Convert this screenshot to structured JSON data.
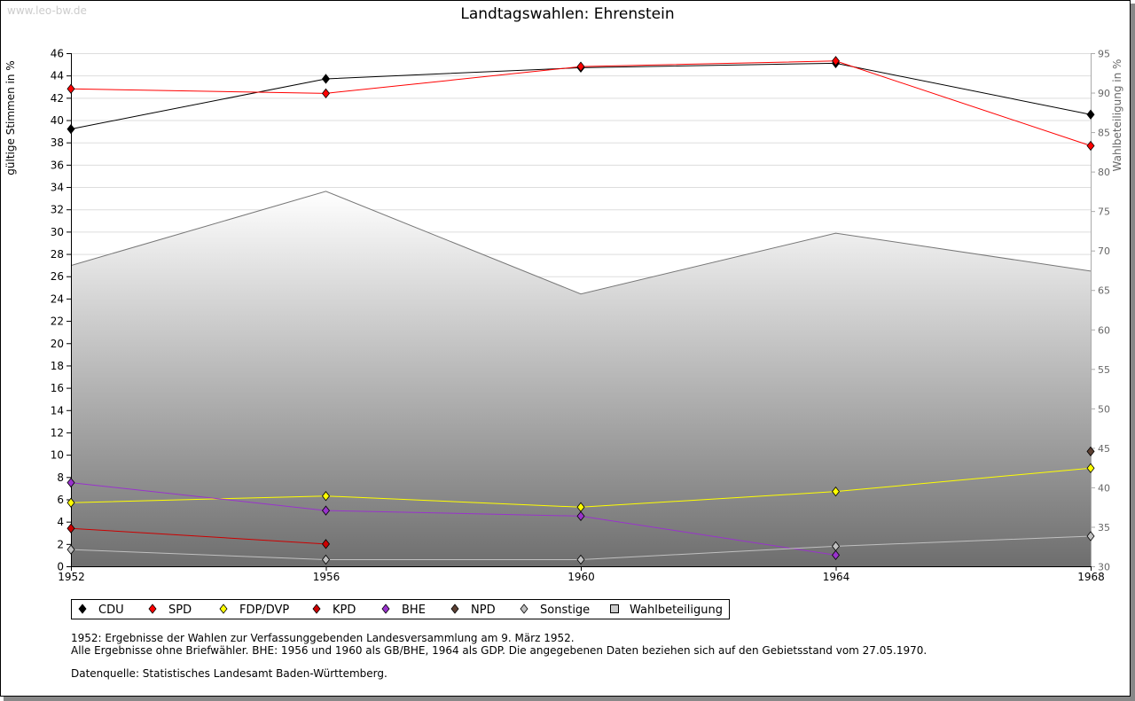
{
  "watermark": "www.leo-bw.de",
  "notes": [
    "1952: Ergebnisse der Wahlen zur Verfassunggebenden Landesversammlung am 9. März 1952.",
    "Alle Ergebnisse ohne Briefwähler. BHE: 1956 und 1960 als GB/BHE, 1964 als GDP. Die angegebenen Daten beziehen sich auf den Gebietsstand vom 27.05.1970.",
    "Datenquelle: Statistisches Landesamt Baden-Württemberg."
  ],
  "chart_data": {
    "type": "line",
    "title": "Landtagswahlen: Ehrenstein",
    "ylabel": "gültige Stimmen in %",
    "y2label": "Wahlbeteiligung in %",
    "x": [
      1952,
      1956,
      1960,
      1964,
      1968
    ],
    "ylim": [
      0,
      46
    ],
    "y2lim": [
      30,
      95
    ],
    "yticks": [
      0,
      2,
      4,
      6,
      8,
      10,
      12,
      14,
      16,
      18,
      20,
      22,
      24,
      26,
      28,
      30,
      32,
      34,
      36,
      38,
      40,
      42,
      44,
      46
    ],
    "y2ticks": [
      30,
      35,
      40,
      45,
      50,
      55,
      60,
      65,
      70,
      75,
      80,
      85,
      90,
      95
    ],
    "grid": true,
    "legend_position": "bottom-left",
    "series": [
      {
        "name": "CDU",
        "color": "#000000",
        "values": [
          39.2,
          43.7,
          44.7,
          45.1,
          40.5
        ]
      },
      {
        "name": "SPD",
        "color": "#ff0000",
        "values": [
          42.8,
          42.4,
          44.8,
          45.3,
          37.7
        ]
      },
      {
        "name": "FDP/DVP",
        "color": "#ffff00",
        "values": [
          5.7,
          6.3,
          5.3,
          6.7,
          8.8
        ]
      },
      {
        "name": "KPD",
        "color": "#cc0000",
        "values": [
          3.4,
          2.0,
          null,
          null,
          null
        ]
      },
      {
        "name": "BHE",
        "color": "#9933cc",
        "values": [
          7.5,
          5.0,
          4.5,
          1.0,
          null
        ]
      },
      {
        "name": "NPD",
        "color": "#5c4033",
        "values": [
          null,
          null,
          null,
          null,
          10.3
        ]
      },
      {
        "name": "Sonstige",
        "color": "#c0c0c0",
        "values": [
          1.5,
          0.6,
          0.6,
          1.8,
          2.7
        ]
      }
    ],
    "turnout": {
      "name": "Wahlbeteiligung",
      "axis": "right",
      "values": [
        68.1,
        77.5,
        64.5,
        72.2,
        67.4
      ]
    }
  }
}
